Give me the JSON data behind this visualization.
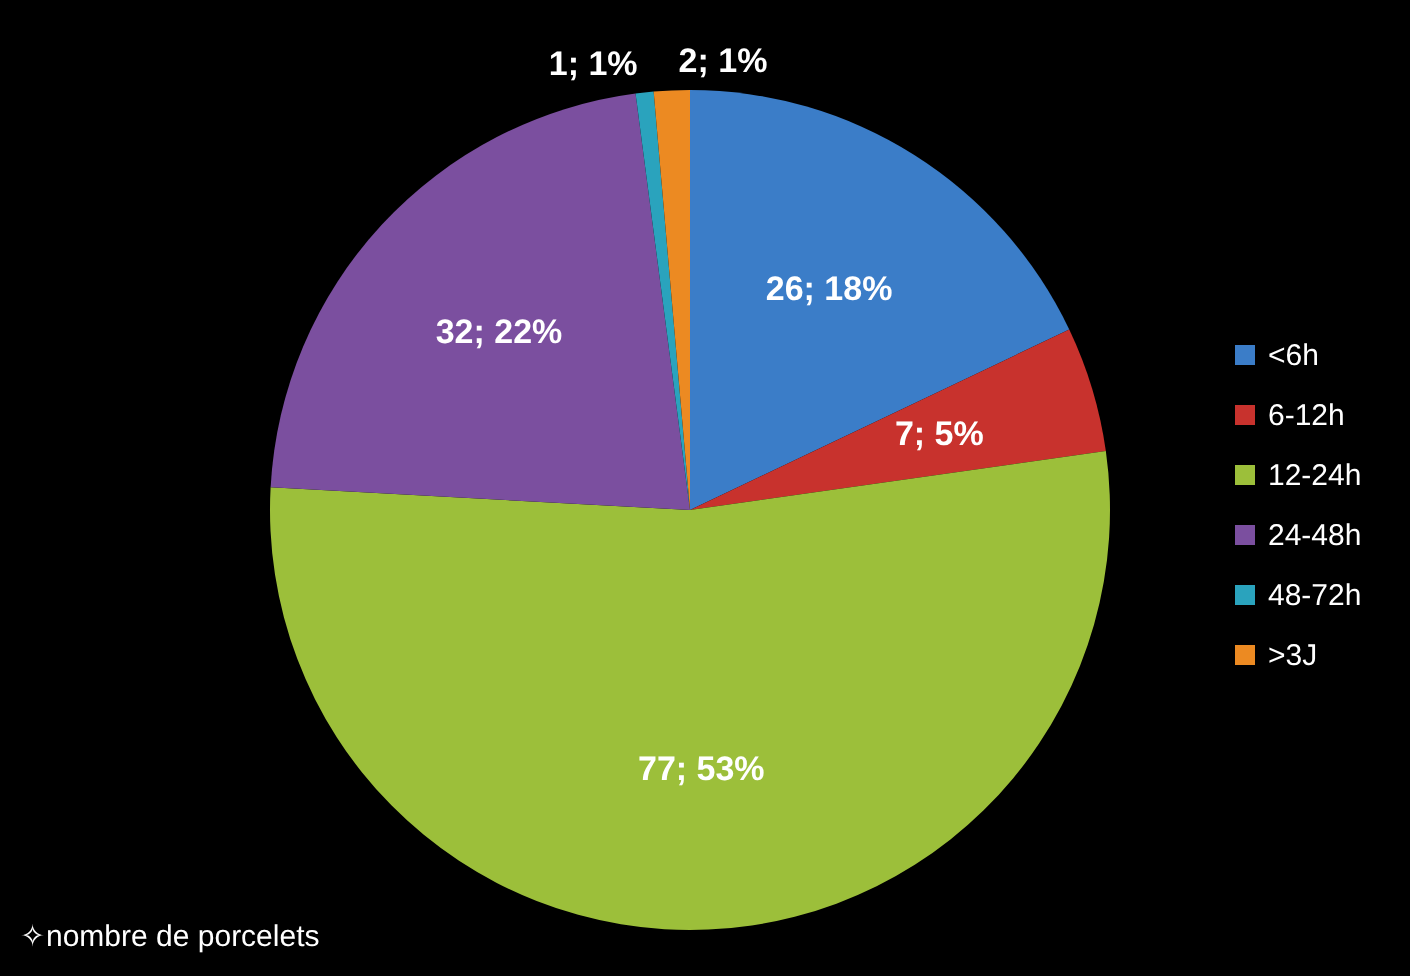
{
  "chart_data": {
    "type": "pie",
    "categories": [
      "<6h",
      "6-12h",
      "12-24h",
      "24-48h",
      "48-72h",
      ">3J"
    ],
    "values": [
      26,
      7,
      77,
      32,
      1,
      2
    ],
    "colors": [
      "#3b7dc8",
      "#c8322d",
      "#9cbf3a",
      "#7b4f9f",
      "#2aa3bd",
      "#ec8a22"
    ],
    "value_labels": [
      "26; 18%",
      "7; 5%",
      "77; 53%",
      "32; 22%",
      "1; 1%",
      "2; 1%"
    ],
    "legend": "right",
    "annotations": [
      "✧nombre de porcelets"
    ]
  }
}
